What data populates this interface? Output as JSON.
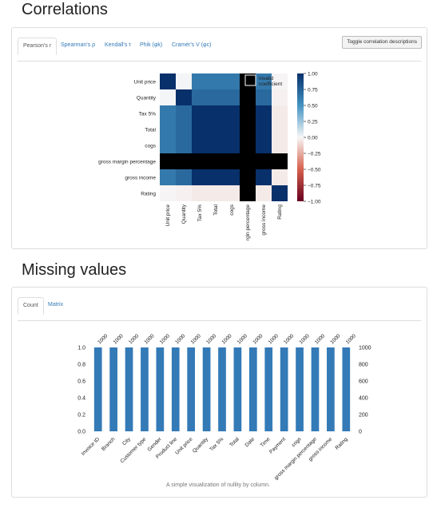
{
  "correlations": {
    "title": "Correlations",
    "tabs": [
      {
        "label": "Pearson's r",
        "active": true
      },
      {
        "label": "Spearman's ρ",
        "active": false
      },
      {
        "label": "Kendall's τ",
        "active": false
      },
      {
        "label": "Phik (φk)",
        "active": false
      },
      {
        "label": "Cramér's V (φc)",
        "active": false
      }
    ],
    "toggle_label": "Toggle correlation descriptions",
    "legend_invalid": [
      "invalid",
      "coefficient"
    ],
    "colors": {
      "positive": "#08306b",
      "negative": "#67001f",
      "invalid": "#000000"
    }
  },
  "missing": {
    "title": "Missing values",
    "tabs": [
      {
        "label": "Count",
        "active": true
      },
      {
        "label": "Matrix",
        "active": false
      }
    ],
    "caption": "A simple visualization of nullity by column.",
    "bar_color": "#337ab7"
  },
  "chart_data": [
    {
      "type": "heatmap",
      "title": "",
      "rows": [
        "Unit price",
        "Quantity",
        "Tax 5%",
        "Total",
        "cogs",
        "gross margin percentage",
        "gross income",
        "Rating"
      ],
      "columns": [
        "Unit price",
        "Quantity",
        "Tax 5%",
        "Total",
        "cogs",
        "gross margin percentage",
        "gross income",
        "Rating"
      ],
      "column_tick_labels": [
        "Unit price",
        "Quantity",
        "Tax 5%",
        "Total",
        "cogs",
        "rgin percentage",
        "gross income",
        "Rating"
      ],
      "values": [
        [
          1.0,
          0.01,
          0.63,
          0.63,
          0.63,
          null,
          0.63,
          -0.01
        ],
        [
          0.01,
          1.0,
          0.71,
          0.71,
          0.71,
          null,
          0.71,
          -0.02
        ],
        [
          0.63,
          0.71,
          1.0,
          1.0,
          1.0,
          null,
          1.0,
          -0.04
        ],
        [
          0.63,
          0.71,
          1.0,
          1.0,
          1.0,
          null,
          1.0,
          -0.04
        ],
        [
          0.63,
          0.71,
          1.0,
          1.0,
          1.0,
          null,
          1.0,
          -0.04
        ],
        [
          null,
          null,
          null,
          null,
          null,
          null,
          null,
          null
        ],
        [
          0.63,
          0.71,
          1.0,
          1.0,
          1.0,
          null,
          1.0,
          -0.04
        ],
        [
          -0.01,
          -0.02,
          -0.04,
          -0.04,
          -0.04,
          null,
          -0.04,
          1.0
        ]
      ],
      "colorbar_ticks": [
        "1.00",
        "0.75",
        "0.50",
        "0.25",
        "0.00",
        "−0.25",
        "−0.50",
        "−0.75",
        "−1.00"
      ],
      "zlim": [
        -1,
        1
      ]
    },
    {
      "type": "bar",
      "title": "",
      "categories": [
        "Invoice ID",
        "Branch",
        "City",
        "Customer type",
        "Gender",
        "Product line",
        "Unit price",
        "Quantity",
        "Tax 5%",
        "Total",
        "Date",
        "Time",
        "Payment",
        "cogs",
        "gross margin percentage",
        "gross income",
        "Rating"
      ],
      "values": [
        1.0,
        1.0,
        1.0,
        1.0,
        1.0,
        1.0,
        1.0,
        1.0,
        1.0,
        1.0,
        1.0,
        1.0,
        1.0,
        1.0,
        1.0,
        1.0,
        1.0
      ],
      "bar_labels": [
        "1000",
        "1000",
        "1000",
        "1000",
        "1000",
        "1000",
        "1000",
        "1000",
        "1000",
        "1000",
        "1000",
        "1000",
        "1000",
        "1000",
        "1000",
        "1000",
        "1000"
      ],
      "y_ticks_left": [
        "0.0",
        "0.2",
        "0.4",
        "0.6",
        "0.8",
        "1.0"
      ],
      "y_ticks_right": [
        "0",
        "200",
        "400",
        "600",
        "800",
        "1000"
      ],
      "ylim": [
        0,
        1
      ]
    }
  ]
}
